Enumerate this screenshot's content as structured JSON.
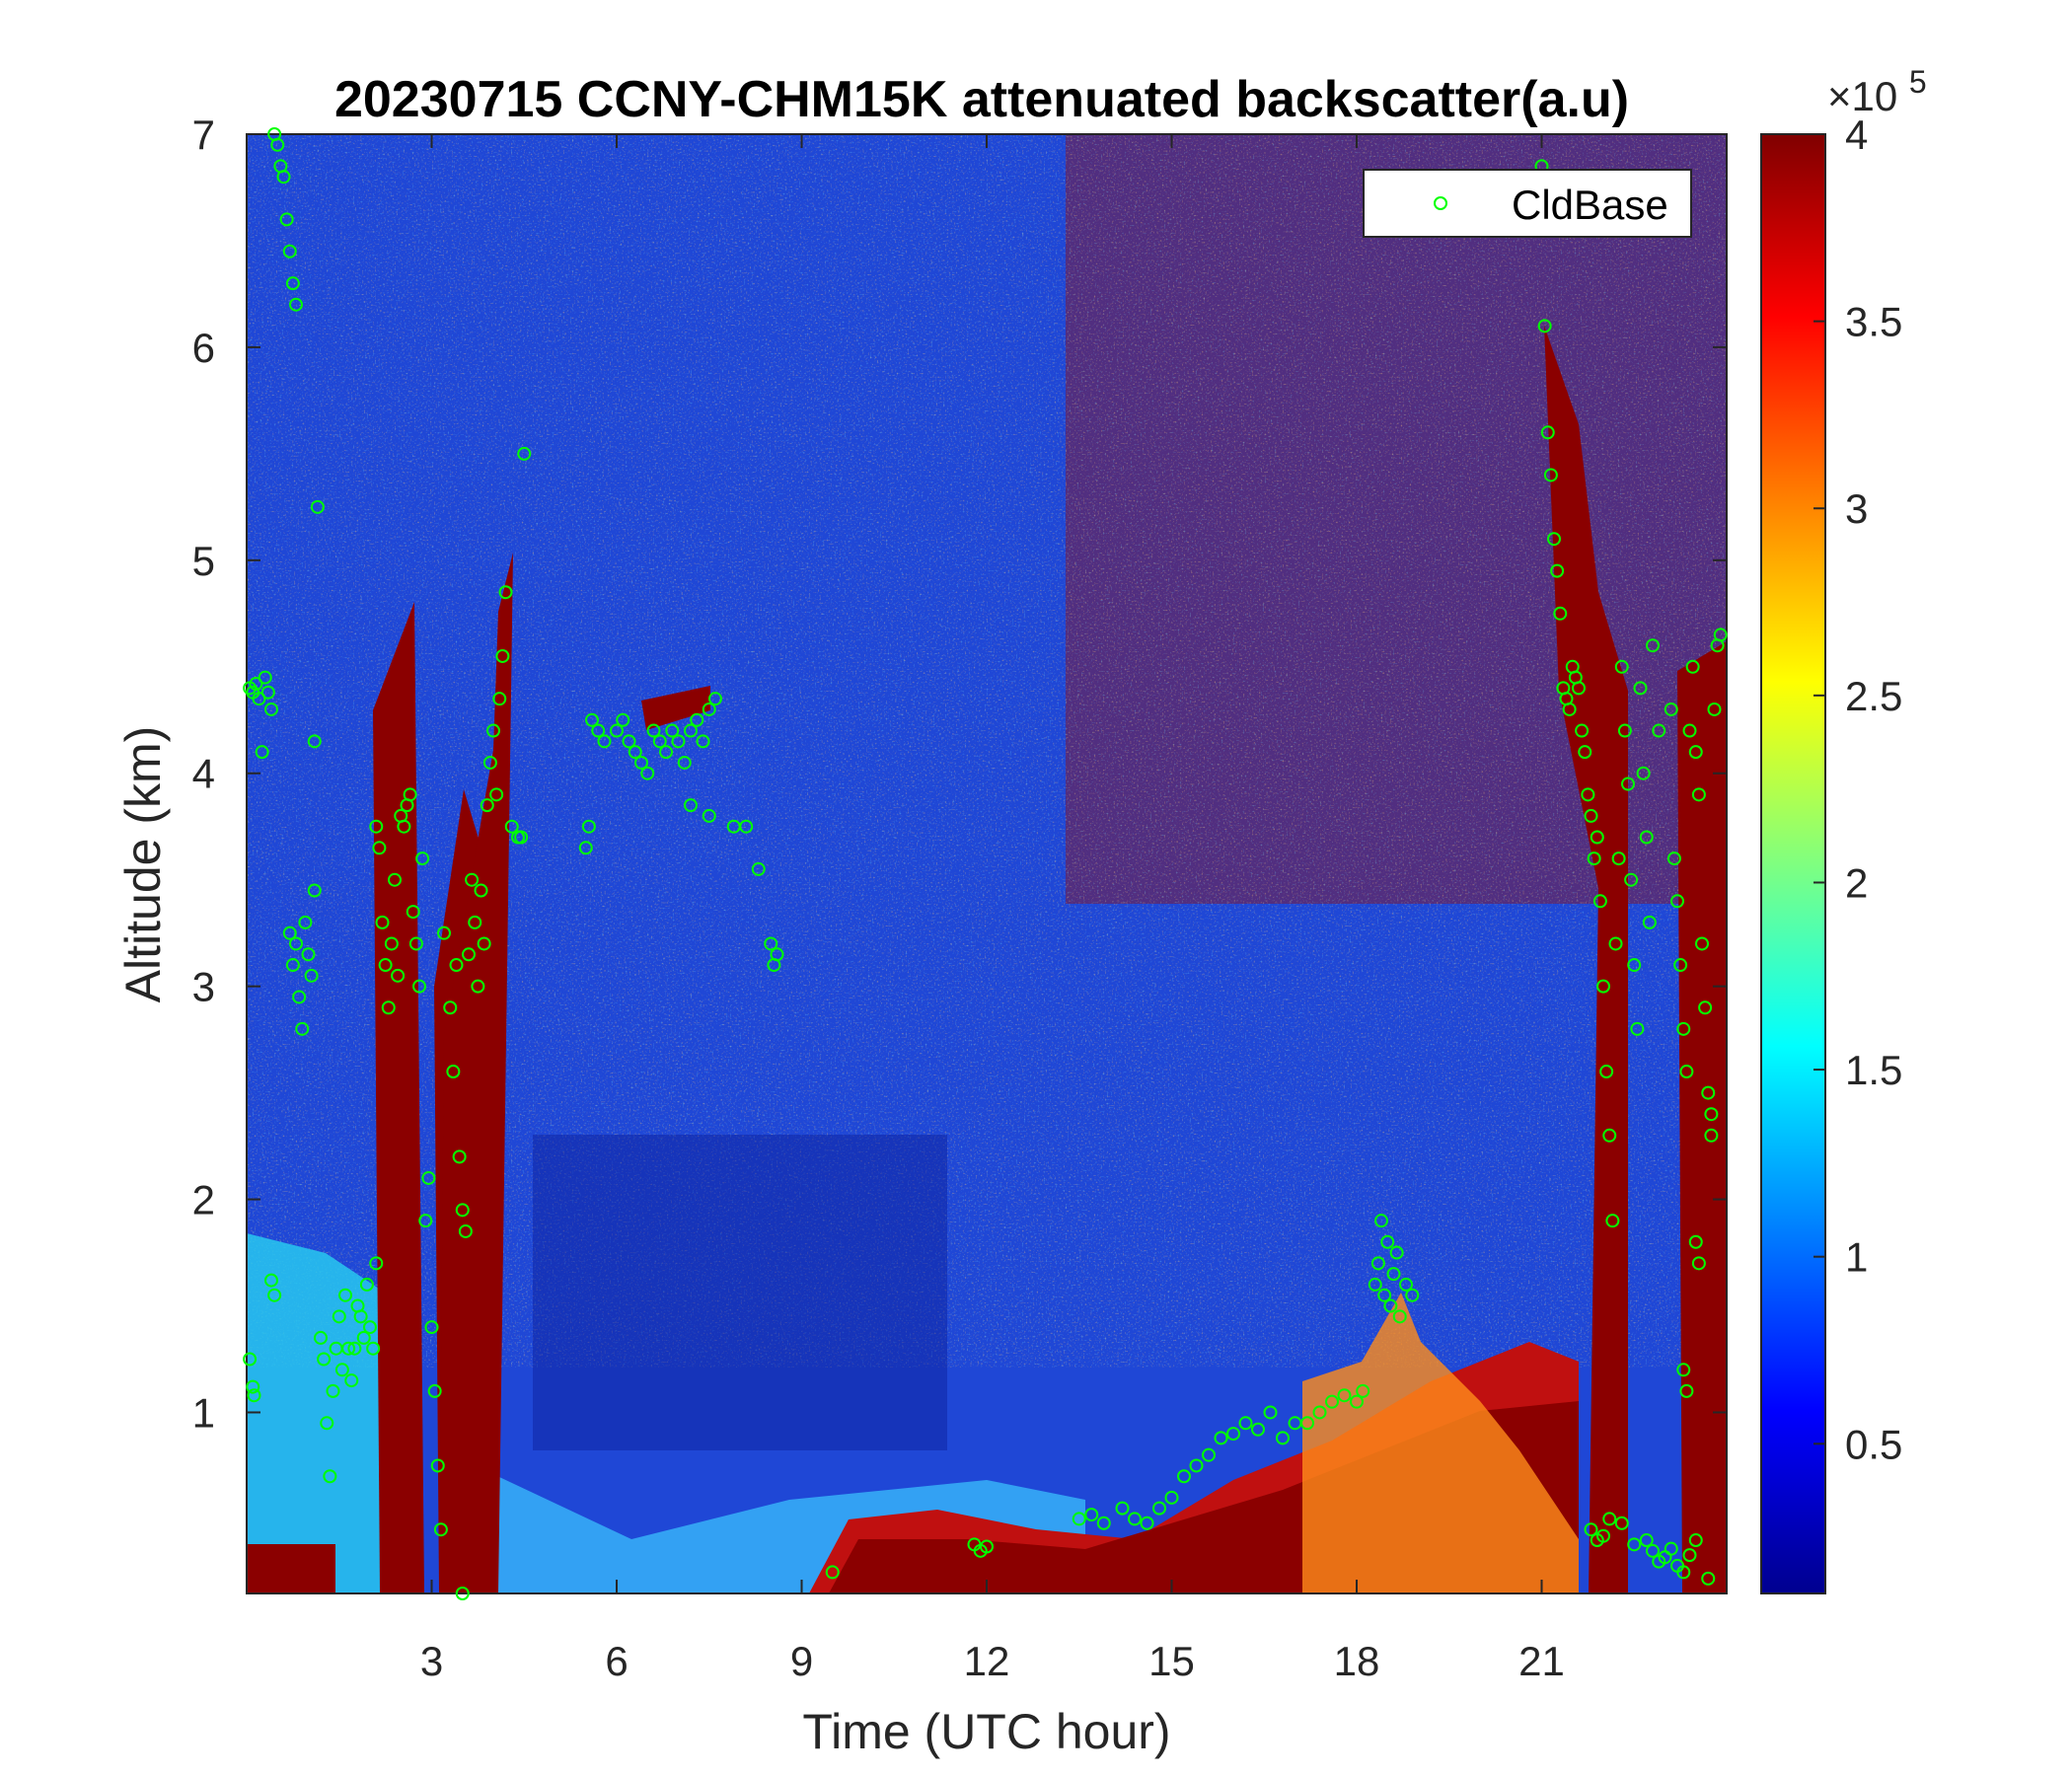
{
  "chart_data": {
    "type": "heatmap",
    "title": "20230715 CCNY-CHM15K attenuated backscatter(a.u)",
    "xlabel": "Time (UTC hour)",
    "ylabel": "Altitude (km)",
    "xlim": [
      0,
      24
    ],
    "ylim": [
      0.15,
      7
    ],
    "xticks": [
      3,
      6,
      9,
      12,
      15,
      18,
      21
    ],
    "yticks": [
      1,
      2,
      3,
      4,
      5,
      6,
      7
    ],
    "colorbar": {
      "clim": [
        10000,
        400000
      ],
      "ticks": [
        0.5,
        1,
        1.5,
        2,
        2.5,
        3,
        3.5,
        4
      ],
      "tick_labels": [
        "0.5",
        "1",
        "1.5",
        "2",
        "2.5",
        "3",
        "3.5",
        "4"
      ],
      "exponent_label": "×10",
      "exponent_power": "5",
      "colormap": "jet"
    },
    "legend": {
      "position": "top-right",
      "entries": [
        {
          "name": "CldBase",
          "marker": "circle",
          "color": "#00ff00"
        }
      ]
    },
    "grid": false,
    "series": [
      {
        "name": "CldBase",
        "marker": "circle",
        "color": "#00ff00",
        "points": [
          [
            0.05,
            4.4
          ],
          [
            0.1,
            4.38
          ],
          [
            0.15,
            4.42
          ],
          [
            0.2,
            4.35
          ],
          [
            0.25,
            4.1
          ],
          [
            0.3,
            4.45
          ],
          [
            0.35,
            4.38
          ],
          [
            0.4,
            4.3
          ],
          [
            0.05,
            1.25
          ],
          [
            0.1,
            1.12
          ],
          [
            0.12,
            1.08
          ],
          [
            0.4,
            1.62
          ],
          [
            0.45,
            1.55
          ],
          [
            0.45,
            7.0
          ],
          [
            0.5,
            6.95
          ],
          [
            0.55,
            6.85
          ],
          [
            0.6,
            6.8
          ],
          [
            0.65,
            6.6
          ],
          [
            0.7,
            6.45
          ],
          [
            0.75,
            6.3
          ],
          [
            0.8,
            6.2
          ],
          [
            0.7,
            3.25
          ],
          [
            0.75,
            3.1
          ],
          [
            0.8,
            3.2
          ],
          [
            0.85,
            2.95
          ],
          [
            0.9,
            2.8
          ],
          [
            0.95,
            3.3
          ],
          [
            1.0,
            3.15
          ],
          [
            1.05,
            3.05
          ],
          [
            1.1,
            3.45
          ],
          [
            1.1,
            4.15
          ],
          [
            1.15,
            5.25
          ],
          [
            1.2,
            1.35
          ],
          [
            1.25,
            1.25
          ],
          [
            1.3,
            0.95
          ],
          [
            1.35,
            0.7
          ],
          [
            1.4,
            1.1
          ],
          [
            1.45,
            1.3
          ],
          [
            1.5,
            1.45
          ],
          [
            1.55,
            1.2
          ],
          [
            1.6,
            1.55
          ],
          [
            1.65,
            1.3
          ],
          [
            1.7,
            1.15
          ],
          [
            1.75,
            1.3
          ],
          [
            1.8,
            1.5
          ],
          [
            1.85,
            1.45
          ],
          [
            1.9,
            1.35
          ],
          [
            1.95,
            1.6
          ],
          [
            2.0,
            1.4
          ],
          [
            2.05,
            1.3
          ],
          [
            2.1,
            1.7
          ],
          [
            2.1,
            3.75
          ],
          [
            2.15,
            3.65
          ],
          [
            2.2,
            3.3
          ],
          [
            2.25,
            3.1
          ],
          [
            2.3,
            2.9
          ],
          [
            2.35,
            3.2
          ],
          [
            2.4,
            3.5
          ],
          [
            2.45,
            3.05
          ],
          [
            2.5,
            3.8
          ],
          [
            2.55,
            3.75
          ],
          [
            2.6,
            3.85
          ],
          [
            2.65,
            3.9
          ],
          [
            2.7,
            3.35
          ],
          [
            2.75,
            3.2
          ],
          [
            2.8,
            3.0
          ],
          [
            2.85,
            3.6
          ],
          [
            2.9,
            1.9
          ],
          [
            2.95,
            2.1
          ],
          [
            3.0,
            1.4
          ],
          [
            3.05,
            1.1
          ],
          [
            3.1,
            0.75
          ],
          [
            3.15,
            0.45
          ],
          [
            3.2,
            3.25
          ],
          [
            3.3,
            2.9
          ],
          [
            3.35,
            2.6
          ],
          [
            3.4,
            3.1
          ],
          [
            3.45,
            2.2
          ],
          [
            3.5,
            1.95
          ],
          [
            3.55,
            1.85
          ],
          [
            3.6,
            3.15
          ],
          [
            3.65,
            3.5
          ],
          [
            3.7,
            3.3
          ],
          [
            3.75,
            3.0
          ],
          [
            3.8,
            3.45
          ],
          [
            3.85,
            3.2
          ],
          [
            3.9,
            3.85
          ],
          [
            3.95,
            4.05
          ],
          [
            4.0,
            4.2
          ],
          [
            4.05,
            3.9
          ],
          [
            4.1,
            4.35
          ],
          [
            4.15,
            4.55
          ],
          [
            4.2,
            4.85
          ],
          [
            4.3,
            3.75
          ],
          [
            4.4,
            3.7
          ],
          [
            4.45,
            3.7
          ],
          [
            4.5,
            5.5
          ],
          [
            3.5,
            0.15
          ],
          [
            5.5,
            3.65
          ],
          [
            5.55,
            3.75
          ],
          [
            5.6,
            4.25
          ],
          [
            5.7,
            4.2
          ],
          [
            5.8,
            4.15
          ],
          [
            6.0,
            4.2
          ],
          [
            6.1,
            4.25
          ],
          [
            6.2,
            4.15
          ],
          [
            6.3,
            4.1
          ],
          [
            6.4,
            4.05
          ],
          [
            6.5,
            4.0
          ],
          [
            6.6,
            4.2
          ],
          [
            6.7,
            4.15
          ],
          [
            6.8,
            4.1
          ],
          [
            6.9,
            4.2
          ],
          [
            7.0,
            4.15
          ],
          [
            7.1,
            4.05
          ],
          [
            7.2,
            4.2
          ],
          [
            7.3,
            4.25
          ],
          [
            7.4,
            4.15
          ],
          [
            7.5,
            4.3
          ],
          [
            7.6,
            4.35
          ],
          [
            7.2,
            3.85
          ],
          [
            7.5,
            3.8
          ],
          [
            7.9,
            3.75
          ],
          [
            8.1,
            3.75
          ],
          [
            8.3,
            3.55
          ],
          [
            8.5,
            3.2
          ],
          [
            8.55,
            3.1
          ],
          [
            8.6,
            3.15
          ],
          [
            9.5,
            0.25
          ],
          [
            11.8,
            0.38
          ],
          [
            11.9,
            0.35
          ],
          [
            12.0,
            0.37
          ],
          [
            13.5,
            0.5
          ],
          [
            13.7,
            0.52
          ],
          [
            13.9,
            0.48
          ],
          [
            14.2,
            0.55
          ],
          [
            14.4,
            0.5
          ],
          [
            14.6,
            0.48
          ],
          [
            14.8,
            0.55
          ],
          [
            15.0,
            0.6
          ],
          [
            15.2,
            0.7
          ],
          [
            15.4,
            0.75
          ],
          [
            15.6,
            0.8
          ],
          [
            15.8,
            0.88
          ],
          [
            16.0,
            0.9
          ],
          [
            16.2,
            0.95
          ],
          [
            16.4,
            0.92
          ],
          [
            16.6,
            1.0
          ],
          [
            16.8,
            0.88
          ],
          [
            17.0,
            0.95
          ],
          [
            17.2,
            0.95
          ],
          [
            17.4,
            1.0
          ],
          [
            17.6,
            1.05
          ],
          [
            17.8,
            1.08
          ],
          [
            18.0,
            1.05
          ],
          [
            18.1,
            1.1
          ],
          [
            18.3,
            1.6
          ],
          [
            18.35,
            1.7
          ],
          [
            18.4,
            1.9
          ],
          [
            18.45,
            1.55
          ],
          [
            18.5,
            1.8
          ],
          [
            18.55,
            1.5
          ],
          [
            18.6,
            1.65
          ],
          [
            18.65,
            1.75
          ],
          [
            18.7,
            1.45
          ],
          [
            18.8,
            1.6
          ],
          [
            18.9,
            1.55
          ],
          [
            21.0,
            6.85
          ],
          [
            21.05,
            6.1
          ],
          [
            21.1,
            5.6
          ],
          [
            21.15,
            5.4
          ],
          [
            21.2,
            5.1
          ],
          [
            21.25,
            4.95
          ],
          [
            21.3,
            4.75
          ],
          [
            21.35,
            4.4
          ],
          [
            21.4,
            4.35
          ],
          [
            21.45,
            4.3
          ],
          [
            21.5,
            4.5
          ],
          [
            21.55,
            4.45
          ],
          [
            21.6,
            4.4
          ],
          [
            21.65,
            4.2
          ],
          [
            21.7,
            4.1
          ],
          [
            21.75,
            3.9
          ],
          [
            21.8,
            3.8
          ],
          [
            21.85,
            3.6
          ],
          [
            21.9,
            3.7
          ],
          [
            21.95,
            3.4
          ],
          [
            22.0,
            3.0
          ],
          [
            22.05,
            2.6
          ],
          [
            22.1,
            2.3
          ],
          [
            22.15,
            1.9
          ],
          [
            22.2,
            3.2
          ],
          [
            22.25,
            3.6
          ],
          [
            22.3,
            4.5
          ],
          [
            22.35,
            4.2
          ],
          [
            22.4,
            3.95
          ],
          [
            22.45,
            3.5
          ],
          [
            22.5,
            3.1
          ],
          [
            22.55,
            2.8
          ],
          [
            22.6,
            4.4
          ],
          [
            22.65,
            4.0
          ],
          [
            22.7,
            3.7
          ],
          [
            22.75,
            3.3
          ],
          [
            22.8,
            4.6
          ],
          [
            22.9,
            4.2
          ],
          [
            21.8,
            0.45
          ],
          [
            21.9,
            0.4
          ],
          [
            22.0,
            0.42
          ],
          [
            22.1,
            0.5
          ],
          [
            22.3,
            0.48
          ],
          [
            22.5,
            0.38
          ],
          [
            22.7,
            0.4
          ],
          [
            22.8,
            0.35
          ],
          [
            22.9,
            0.3
          ],
          [
            23.0,
            0.32
          ],
          [
            23.1,
            0.36
          ],
          [
            23.2,
            0.28
          ],
          [
            23.3,
            0.25
          ],
          [
            23.4,
            0.33
          ],
          [
            23.5,
            0.4
          ],
          [
            23.7,
            0.22
          ],
          [
            23.1,
            4.3
          ],
          [
            23.15,
            3.6
          ],
          [
            23.2,
            3.4
          ],
          [
            23.25,
            3.1
          ],
          [
            23.3,
            2.8
          ],
          [
            23.35,
            2.6
          ],
          [
            23.4,
            4.2
          ],
          [
            23.45,
            4.5
          ],
          [
            23.5,
            4.1
          ],
          [
            23.55,
            3.9
          ],
          [
            23.6,
            3.2
          ],
          [
            23.65,
            2.9
          ],
          [
            23.7,
            2.5
          ],
          [
            23.75,
            2.3
          ],
          [
            23.8,
            4.3
          ],
          [
            23.85,
            4.6
          ],
          [
            23.9,
            4.65
          ],
          [
            23.3,
            1.2
          ],
          [
            23.35,
            1.1
          ],
          [
            23.5,
            1.8
          ],
          [
            23.55,
            1.7
          ],
          [
            23.75,
            2.4
          ]
        ]
      }
    ]
  }
}
